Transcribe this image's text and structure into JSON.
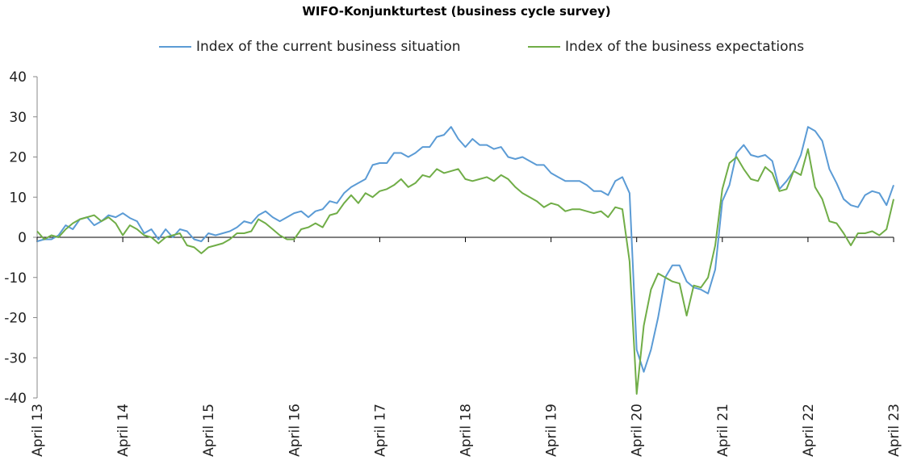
{
  "chart_data": {
    "type": "line",
    "title": "WIFO-Konjunkturtest (business cycle survey)",
    "xlabel": "",
    "ylabel": "",
    "ylim": [
      -40,
      40
    ],
    "yticks": [
      40,
      30,
      20,
      10,
      0,
      -10,
      -20,
      -30,
      -40
    ],
    "xticks": [
      "April 13",
      "April 14",
      "April 15",
      "April 16",
      "April 17",
      "April 18",
      "April 19",
      "April 20",
      "April 21",
      "April 22",
      "April 23"
    ],
    "x_start": "April 13",
    "x_end": "April 23",
    "grid": false,
    "legend_position": "top",
    "series": [
      {
        "name": "Index of the current business situation",
        "color": "#5B9BD5",
        "values": [
          -1,
          -0.5,
          -0.5,
          0.5,
          3,
          2,
          4.5,
          5,
          3,
          4,
          5.5,
          5,
          6,
          4.8,
          4,
          1,
          2,
          -0.5,
          2,
          0,
          2,
          1.5,
          -0.5,
          -1,
          1,
          0.5,
          1,
          1.5,
          2.5,
          4,
          3.5,
          5.5,
          6.5,
          5,
          4,
          5,
          6,
          6.5,
          5,
          6.5,
          7,
          9,
          8.5,
          11,
          12.5,
          13.5,
          14.5,
          18,
          18.5,
          18.5,
          21,
          21,
          20,
          21,
          22.5,
          22.5,
          25,
          25.5,
          27.5,
          24.5,
          22.5,
          24.5,
          23,
          23,
          22,
          22.5,
          20,
          19.5,
          20,
          19,
          18,
          18,
          16,
          15,
          14,
          14,
          14,
          13,
          11.5,
          11.5,
          10.5,
          14,
          15,
          11,
          -28,
          -33.5,
          -28,
          -20,
          -10,
          -7,
          -7,
          -11,
          -12.5,
          -13,
          -14,
          -8,
          9,
          13,
          21,
          23,
          20.5,
          20,
          20.5,
          19,
          12,
          14,
          16.5,
          20.5,
          27.5,
          26.5,
          24,
          17,
          13.5,
          9.5,
          8,
          7.5,
          10.5,
          11.5,
          11,
          8,
          13
        ]
      },
      {
        "name": "Index of the business expectations",
        "color": "#70AD47",
        "values": [
          1.5,
          -0.5,
          0.5,
          0,
          2,
          3.5,
          4.5,
          5,
          5.5,
          4,
          5,
          3.5,
          0.5,
          3,
          2,
          0.5,
          0,
          -1.5,
          0,
          0.5,
          1,
          -2,
          -2.5,
          -4,
          -2.5,
          -2,
          -1.5,
          -0.5,
          1,
          1,
          1.5,
          4.5,
          3.5,
          2,
          0.5,
          -0.5,
          -0.5,
          2,
          2.5,
          3.5,
          2.5,
          5.5,
          6,
          8.5,
          10.5,
          8.5,
          11,
          10,
          11.5,
          12,
          13,
          14.5,
          12.5,
          13.5,
          15.5,
          15,
          17,
          16,
          16.5,
          17,
          14.5,
          14,
          14.5,
          15,
          14,
          15.5,
          14.5,
          12.5,
          11,
          10,
          9,
          7.5,
          8.5,
          8,
          6.5,
          7,
          7,
          6.5,
          6,
          6.5,
          5,
          7.5,
          7,
          -6,
          -39,
          -22,
          -13,
          -9,
          -10,
          -11,
          -11.5,
          -19.5,
          -12,
          -12.5,
          -10,
          -2,
          12,
          18.5,
          20,
          17,
          14.5,
          14,
          17.5,
          16,
          11.5,
          12,
          16.5,
          15.5,
          22,
          12.5,
          9.5,
          4,
          3.5,
          1,
          -2,
          1,
          1,
          1.5,
          0.5,
          2,
          9.5
        ]
      }
    ]
  }
}
